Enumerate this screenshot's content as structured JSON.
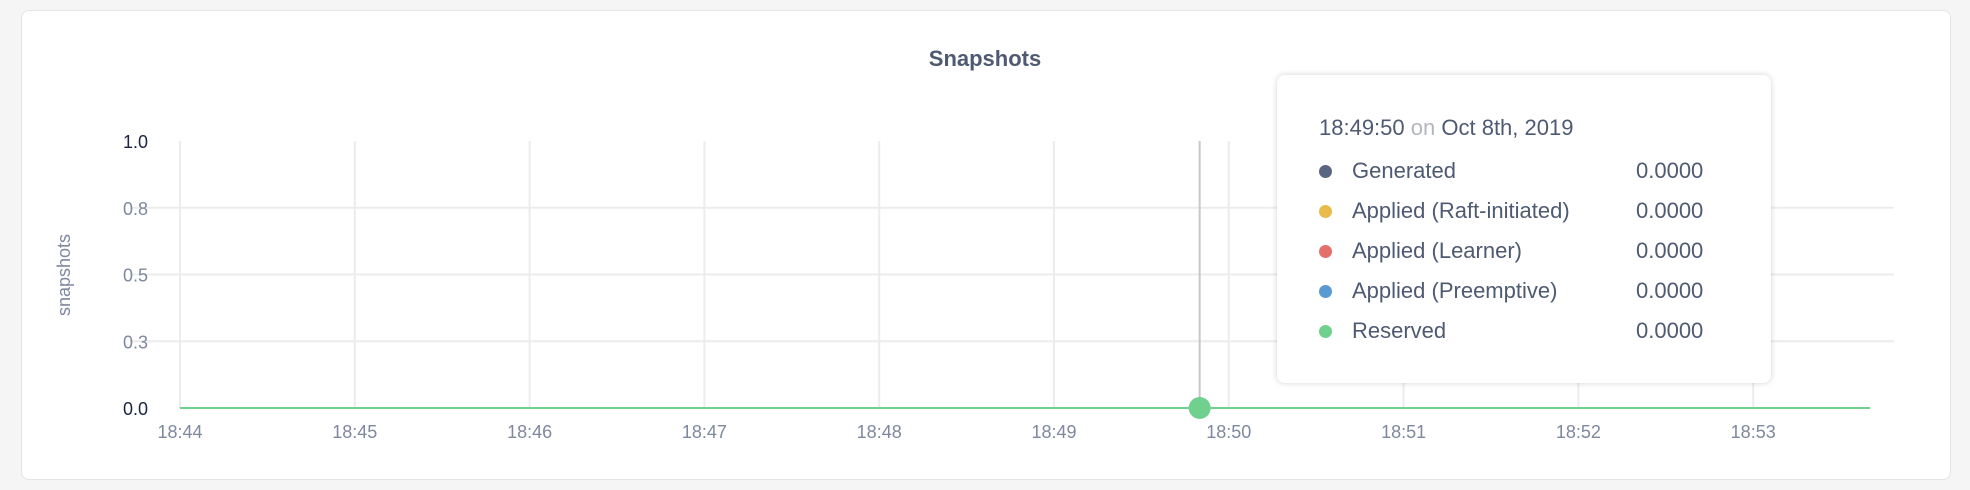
{
  "chart_data": {
    "type": "line",
    "title": "Snapshots",
    "ylabel": "snapshots",
    "xlabel": "",
    "ylim": [
      0,
      1
    ],
    "yticks": [
      {
        "value": 0,
        "label": "0.0"
      },
      {
        "value": 0.25,
        "label": "0.3"
      },
      {
        "value": 0.5,
        "label": "0.5"
      },
      {
        "value": 0.75,
        "label": "0.8"
      },
      {
        "value": 1,
        "label": "1.0"
      }
    ],
    "xticks": [
      "18:44",
      "18:45",
      "18:46",
      "18:47",
      "18:48",
      "18:49",
      "18:50",
      "18:51",
      "18:52",
      "18:53"
    ],
    "x": [
      "18:44:00",
      "18:53:40"
    ],
    "grid": true,
    "series": [
      {
        "name": "Generated",
        "color": "#5b6681",
        "values": [
          0,
          0
        ]
      },
      {
        "name": "Applied (Raft-initiated)",
        "color": "#e8bb4a",
        "values": [
          0,
          0
        ]
      },
      {
        "name": "Applied (Learner)",
        "color": "#e5706b",
        "values": [
          0,
          0
        ]
      },
      {
        "name": "Applied (Preemptive)",
        "color": "#5a9ad2",
        "values": [
          0,
          0
        ]
      },
      {
        "name": "Reserved",
        "color": "#70d08e",
        "values": [
          0,
          0
        ]
      }
    ],
    "hover": {
      "x": "18:49:50"
    }
  },
  "tooltip": {
    "time": "18:49:50",
    "on": "on",
    "date": "Oct 8th, 2019",
    "rows": [
      {
        "label": "Generated",
        "value": "0.0000"
      },
      {
        "label": "Applied (Raft-initiated)",
        "value": "0.0000"
      },
      {
        "label": "Applied (Learner)",
        "value": "0.0000"
      },
      {
        "label": "Applied (Preemptive)",
        "value": "0.0000"
      },
      {
        "label": "Reserved",
        "value": "0.0000"
      }
    ]
  }
}
